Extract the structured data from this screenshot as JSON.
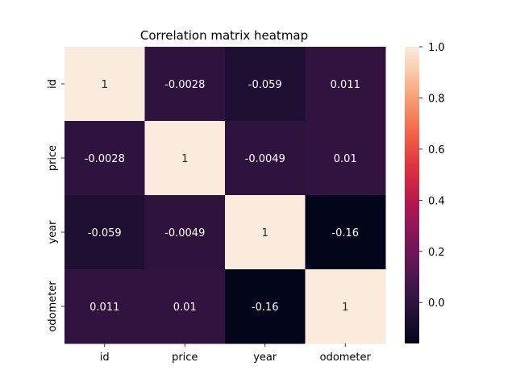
{
  "chart_data": {
    "type": "heatmap",
    "title": "Correlation matrix heatmap",
    "xlabel": "",
    "ylabel": "",
    "x_categories": [
      "id",
      "price",
      "year",
      "odometer"
    ],
    "y_categories": [
      "id",
      "price",
      "year",
      "odometer"
    ],
    "values": [
      [
        1,
        -0.0028,
        -0.059,
        0.011
      ],
      [
        -0.0028,
        1,
        -0.0049,
        0.01
      ],
      [
        -0.059,
        -0.0049,
        1,
        -0.16
      ],
      [
        0.011,
        0.01,
        -0.16,
        1
      ]
    ],
    "cell_labels": [
      [
        "1",
        "-0.0028",
        "-0.059",
        "0.011"
      ],
      [
        "-0.0028",
        "1",
        "-0.0049",
        "0.01"
      ],
      [
        "-0.059",
        "-0.0049",
        "1",
        "-0.16"
      ],
      [
        "0.011",
        "0.01",
        "-0.16",
        "1"
      ]
    ],
    "colorbar": {
      "range": [
        -0.16,
        1.0
      ],
      "ticks": [
        0.0,
        0.2,
        0.4,
        0.6,
        0.8,
        1.0
      ],
      "tick_labels": [
        "0.0",
        "0.2",
        "0.4",
        "0.6",
        "0.8",
        "1.0"
      ],
      "colormap": "rocket"
    },
    "grid": false
  }
}
